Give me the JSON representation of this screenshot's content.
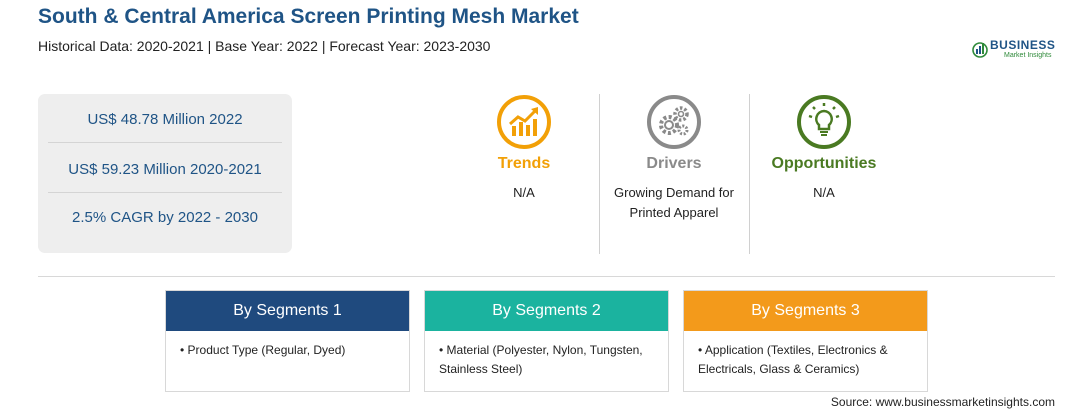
{
  "header": {
    "title": "South & Central America Screen Printing Mesh Market",
    "subtitle": "Historical Data: 2020-2021 | Base Year: 2022 | Forecast Year: 2023-2030"
  },
  "logo": {
    "main": "BUSINESS",
    "sub": "Market Insights"
  },
  "stats": [
    "US$ 48.78 Million 2022",
    "US$ 59.23 Million 2020-2021",
    "2.5% CAGR by 2022 - 2030"
  ],
  "columns": {
    "trends": {
      "title": "Trends",
      "text": "N/A",
      "icon": "trend-chart-icon",
      "color": "#f2a007"
    },
    "drivers": {
      "title": "Drivers",
      "text": "Growing Demand for Printed Apparel",
      "icon": "gears-icon",
      "color": "#8a8a8a"
    },
    "opportunities": {
      "title": "Opportunities",
      "text": "N/A",
      "icon": "lightbulb-icon",
      "color": "#4a7a22"
    }
  },
  "segments": [
    {
      "title": "By Segments 1",
      "item": "Product Type (Regular, Dyed)",
      "color": "#1f4a7e"
    },
    {
      "title": "By Segments 2",
      "item": "Material (Polyester, Nylon, Tungsten, Stainless Steel)",
      "color": "#1bb39f"
    },
    {
      "title": "By Segments 3",
      "item": "Application (Textiles, Electronics & Electricals, Glass & Ceramics)",
      "color": "#f39a1b"
    }
  ],
  "source": "Source: www.businessmarketinsights.com"
}
